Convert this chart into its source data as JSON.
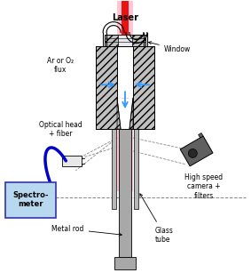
{
  "figsize": [
    2.83,
    3.07
  ],
  "dpi": 100,
  "bg_color": "#ffffff",
  "colors": {
    "gray_hatch": "#c0c0c0",
    "gray_metal": "#a8a8a8",
    "gray_tube": "#b8b8b8",
    "laser_pink": "#ffb8c8",
    "laser_red": "#ee1111",
    "blue_arrow": "#3399ff",
    "blue_fiber": "#0000cc",
    "spectrometer_fill": "#b8d8f0",
    "spectrometer_border": "#3333aa",
    "camera_gray": "#606060",
    "white": "#ffffff",
    "black": "#000000",
    "dashed_line": "#888888"
  },
  "labels": {
    "laser": "Laser",
    "window": "Window",
    "ar_flux": "Ar or O₂\nflux",
    "optical_head": "Optical head\n+ fiber",
    "spectrometer": "Spectro-\nmeter",
    "metal_rod": "Metal rod",
    "glass_tube": "Glass\ntube",
    "high_speed": "High speed\ncamera +\nfilters"
  }
}
